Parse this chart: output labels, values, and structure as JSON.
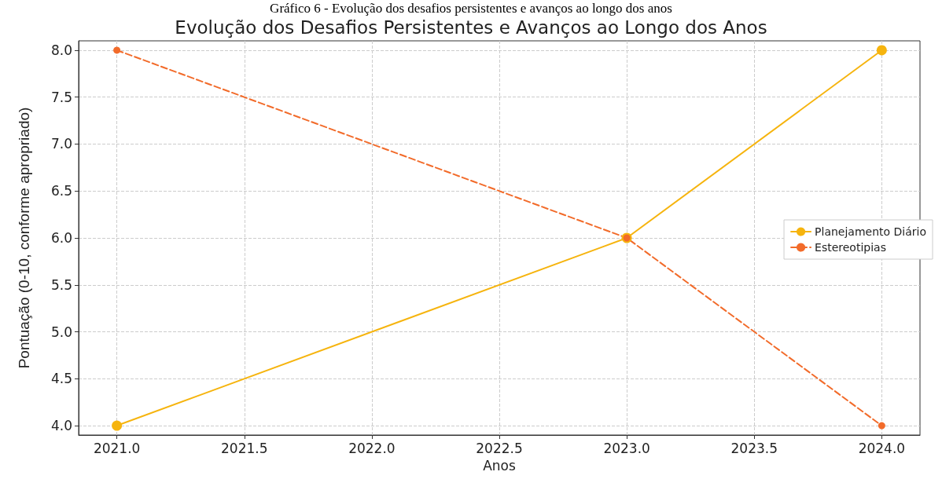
{
  "chart_data": {
    "type": "line",
    "title": "Evolução dos Desafios Persistentes e Avanços ao Longo dos Anos",
    "xlabel": "Anos",
    "ylabel": "Pontuação (0-10, conforme apropriado)",
    "annotations": [
      "Gráfico 6 - Evolução dos desafios persistentes e avanços ao longo dos anos"
    ],
    "x": [
      2021,
      2023,
      2024
    ],
    "series": [
      {
        "name": "Planejamento Diário",
        "color": "#f6b40e",
        "values": [
          4,
          6,
          8
        ],
        "line_style": "solid"
      },
      {
        "name": "Estereotipias",
        "color": "#f26b2a",
        "values": [
          8,
          6,
          4
        ],
        "line_style": "dashed"
      }
    ],
    "xlim": [
      2020.85,
      2024.15
    ],
    "xticks": [
      {
        "value": 2021,
        "label": "2021.0"
      },
      {
        "value": 2021.5,
        "label": "2021.5"
      },
      {
        "value": 2022,
        "label": "2022.0"
      },
      {
        "value": 2022.5,
        "label": "2022.5"
      },
      {
        "value": 2023,
        "label": "2023.0"
      },
      {
        "value": 2023.5,
        "label": "2023.5"
      },
      {
        "value": 2024,
        "label": "2024.0"
      }
    ],
    "ylim": [
      3.9,
      8.1
    ],
    "yticks": [
      {
        "value": 4,
        "label": "4.0"
      },
      {
        "value": 4.5,
        "label": "4.5"
      },
      {
        "value": 5,
        "label": "5.0"
      },
      {
        "value": 5.5,
        "label": "5.5"
      },
      {
        "value": 6,
        "label": "6.0"
      },
      {
        "value": 6.5,
        "label": "6.5"
      },
      {
        "value": 7,
        "label": "7.0"
      },
      {
        "value": 7.5,
        "label": "7.5"
      },
      {
        "value": 8,
        "label": "8.0"
      }
    ],
    "grid": true,
    "legend": "right",
    "marker": "circle"
  }
}
